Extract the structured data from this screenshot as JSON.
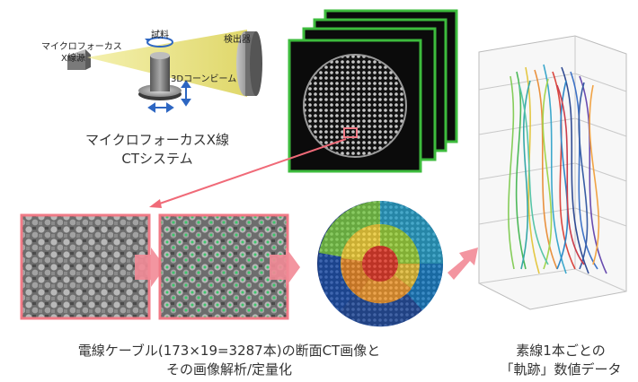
{
  "system": {
    "source_label_1": "マイクロフォーカス",
    "source_label_2": "X線源",
    "sample_label": "試料",
    "detector_label": "検出器",
    "beam_label": "3Dコーンビーム",
    "caption_line1": "マイクロフォーカスX線",
    "caption_line2": "CTシステム"
  },
  "analysis_caption": {
    "line1": "電線ケーブル(173×19=3287本)の断面CT画像と",
    "line2": "その画像解析/定量化"
  },
  "trajectory_caption": {
    "line1": "素線1本ごとの",
    "line2": "「軌跡」数値データ"
  },
  "colors": {
    "frame_green": "#3dbb3d",
    "frame_pink": "#f07a86",
    "arrow_pink": "#f06a78",
    "detector_gray": "#888888",
    "beam_yellow": "#e6df70"
  }
}
